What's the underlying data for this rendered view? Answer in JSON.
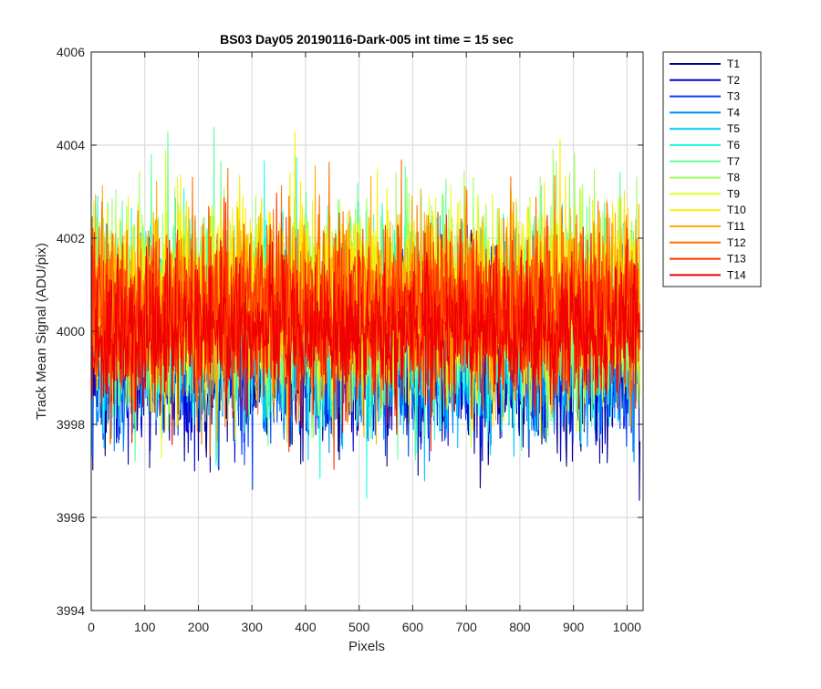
{
  "chart_data": {
    "type": "line",
    "title": "BS03 Day05 20190116-Dark-005 int time = 15 sec",
    "xlabel": "Pixels",
    "ylabel": "Track Mean Signal (ADU/pix)",
    "xlim": [
      0,
      1030
    ],
    "ylim": [
      3994,
      4006
    ],
    "xticks": [
      0,
      100,
      200,
      300,
      400,
      500,
      600,
      700,
      800,
      900,
      1000
    ],
    "yticks": [
      3994,
      3996,
      3998,
      4000,
      4002,
      4004,
      4006
    ],
    "grid": true,
    "legend_position": "outside-top-right",
    "n_points": 1024,
    "series": [
      {
        "name": "T1",
        "color": "#00008f",
        "mean": 3999.3,
        "noise": 0.9
      },
      {
        "name": "T2",
        "color": "#0000d6",
        "mean": 3999.4,
        "noise": 0.85
      },
      {
        "name": "T3",
        "color": "#0040ff",
        "mean": 3999.5,
        "noise": 0.85
      },
      {
        "name": "T4",
        "color": "#0089ff",
        "mean": 3999.7,
        "noise": 0.9
      },
      {
        "name": "T5",
        "color": "#00c8ff",
        "mean": 3999.9,
        "noise": 1.0
      },
      {
        "name": "T6",
        "color": "#20ffdf",
        "mean": 4000.2,
        "noise": 1.05
      },
      {
        "name": "T7",
        "color": "#60ff9f",
        "mean": 4000.4,
        "noise": 1.1
      },
      {
        "name": "T8",
        "color": "#9fff60",
        "mean": 4000.6,
        "noise": 1.1
      },
      {
        "name": "T9",
        "color": "#dfff20",
        "mean": 4000.6,
        "noise": 1.05
      },
      {
        "name": "T10",
        "color": "#ffee00",
        "mean": 4000.7,
        "noise": 1.0
      },
      {
        "name": "T11",
        "color": "#ffb000",
        "mean": 4000.6,
        "noise": 0.95
      },
      {
        "name": "T12",
        "color": "#ff7000",
        "mean": 4000.5,
        "noise": 0.95
      },
      {
        "name": "T13",
        "color": "#ff3000",
        "mean": 4000.4,
        "noise": 0.9
      },
      {
        "name": "T14",
        "color": "#f00000",
        "mean": 4000.0,
        "noise": 0.8
      }
    ]
  }
}
